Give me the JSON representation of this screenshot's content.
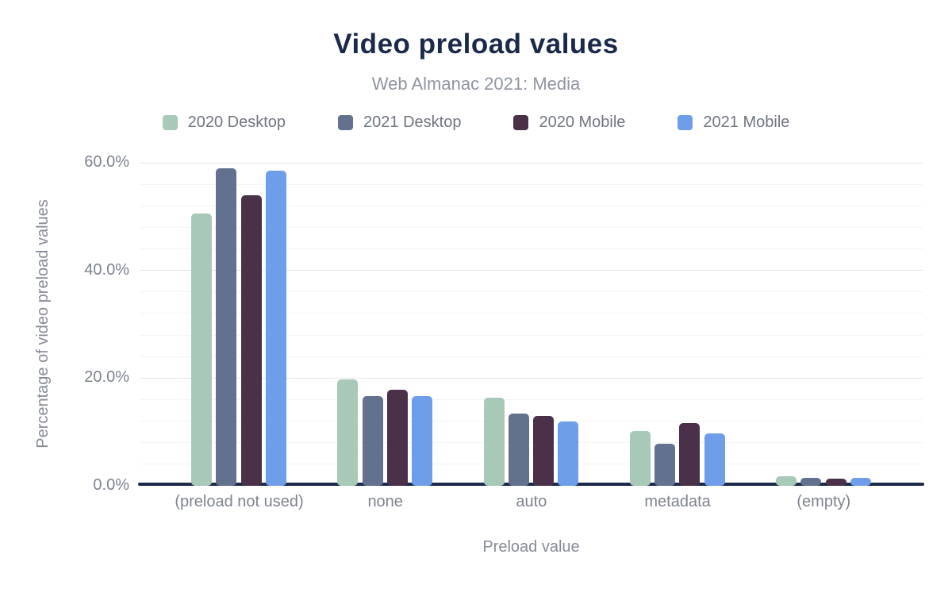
{
  "title": "Video preload values",
  "subtitle": "Web Almanac 2021: Media",
  "colors": {
    "title": "#1b2a4a",
    "axis_line": "#1b2a4a",
    "subtitle_text": "#8f95a0",
    "tick_text": "#7d838e",
    "legend_text": "#6f7580",
    "grid_major": "#e2e4e7",
    "grid_minor": "#f3f4f6",
    "series_2020_desktop": "#a8c8b8",
    "series_2021_desktop": "#62718e",
    "series_2020_mobile": "#4a3048",
    "series_2021_mobile": "#6e9eea"
  },
  "legend": [
    {
      "label": "2020 Desktop",
      "color": "#a8c8b8"
    },
    {
      "label": "2021 Desktop",
      "color": "#62718e"
    },
    {
      "label": "2020 Mobile",
      "color": "#4a3048"
    },
    {
      "label": "2021 Mobile",
      "color": "#6e9eea"
    }
  ],
  "chart_data": {
    "type": "bar",
    "title": "Video preload values",
    "subtitle": "Web Almanac 2021: Media",
    "xlabel": "Preload value",
    "ylabel": "Percentage of video preload values",
    "categories": [
      "(preload not used)",
      "none",
      "auto",
      "metadata",
      "(empty)"
    ],
    "series": [
      {
        "name": "2020 Desktop",
        "color": "#a8c8b8",
        "values": [
          50.5,
          19.7,
          16.4,
          10.2,
          1.8
        ]
      },
      {
        "name": "2021 Desktop",
        "color": "#62718e",
        "values": [
          59.0,
          16.6,
          13.4,
          7.8,
          1.5
        ]
      },
      {
        "name": "2020 Mobile",
        "color": "#4a3048",
        "values": [
          54.0,
          17.9,
          12.9,
          11.7,
          1.4
        ]
      },
      {
        "name": "2021 Mobile",
        "color": "#6e9eea",
        "values": [
          58.5,
          16.6,
          11.9,
          9.7,
          1.5
        ]
      }
    ],
    "ylim": [
      0,
      60
    ],
    "yticks": [
      {
        "value": 0,
        "label": "0.0%"
      },
      {
        "value": 20,
        "label": "20.0%"
      },
      {
        "value": 40,
        "label": "40.0%"
      },
      {
        "value": 60,
        "label": "60.0%"
      }
    ],
    "minor_grid_step_pct": 4,
    "grid": true,
    "legend_position": "top",
    "units": "percent"
  }
}
